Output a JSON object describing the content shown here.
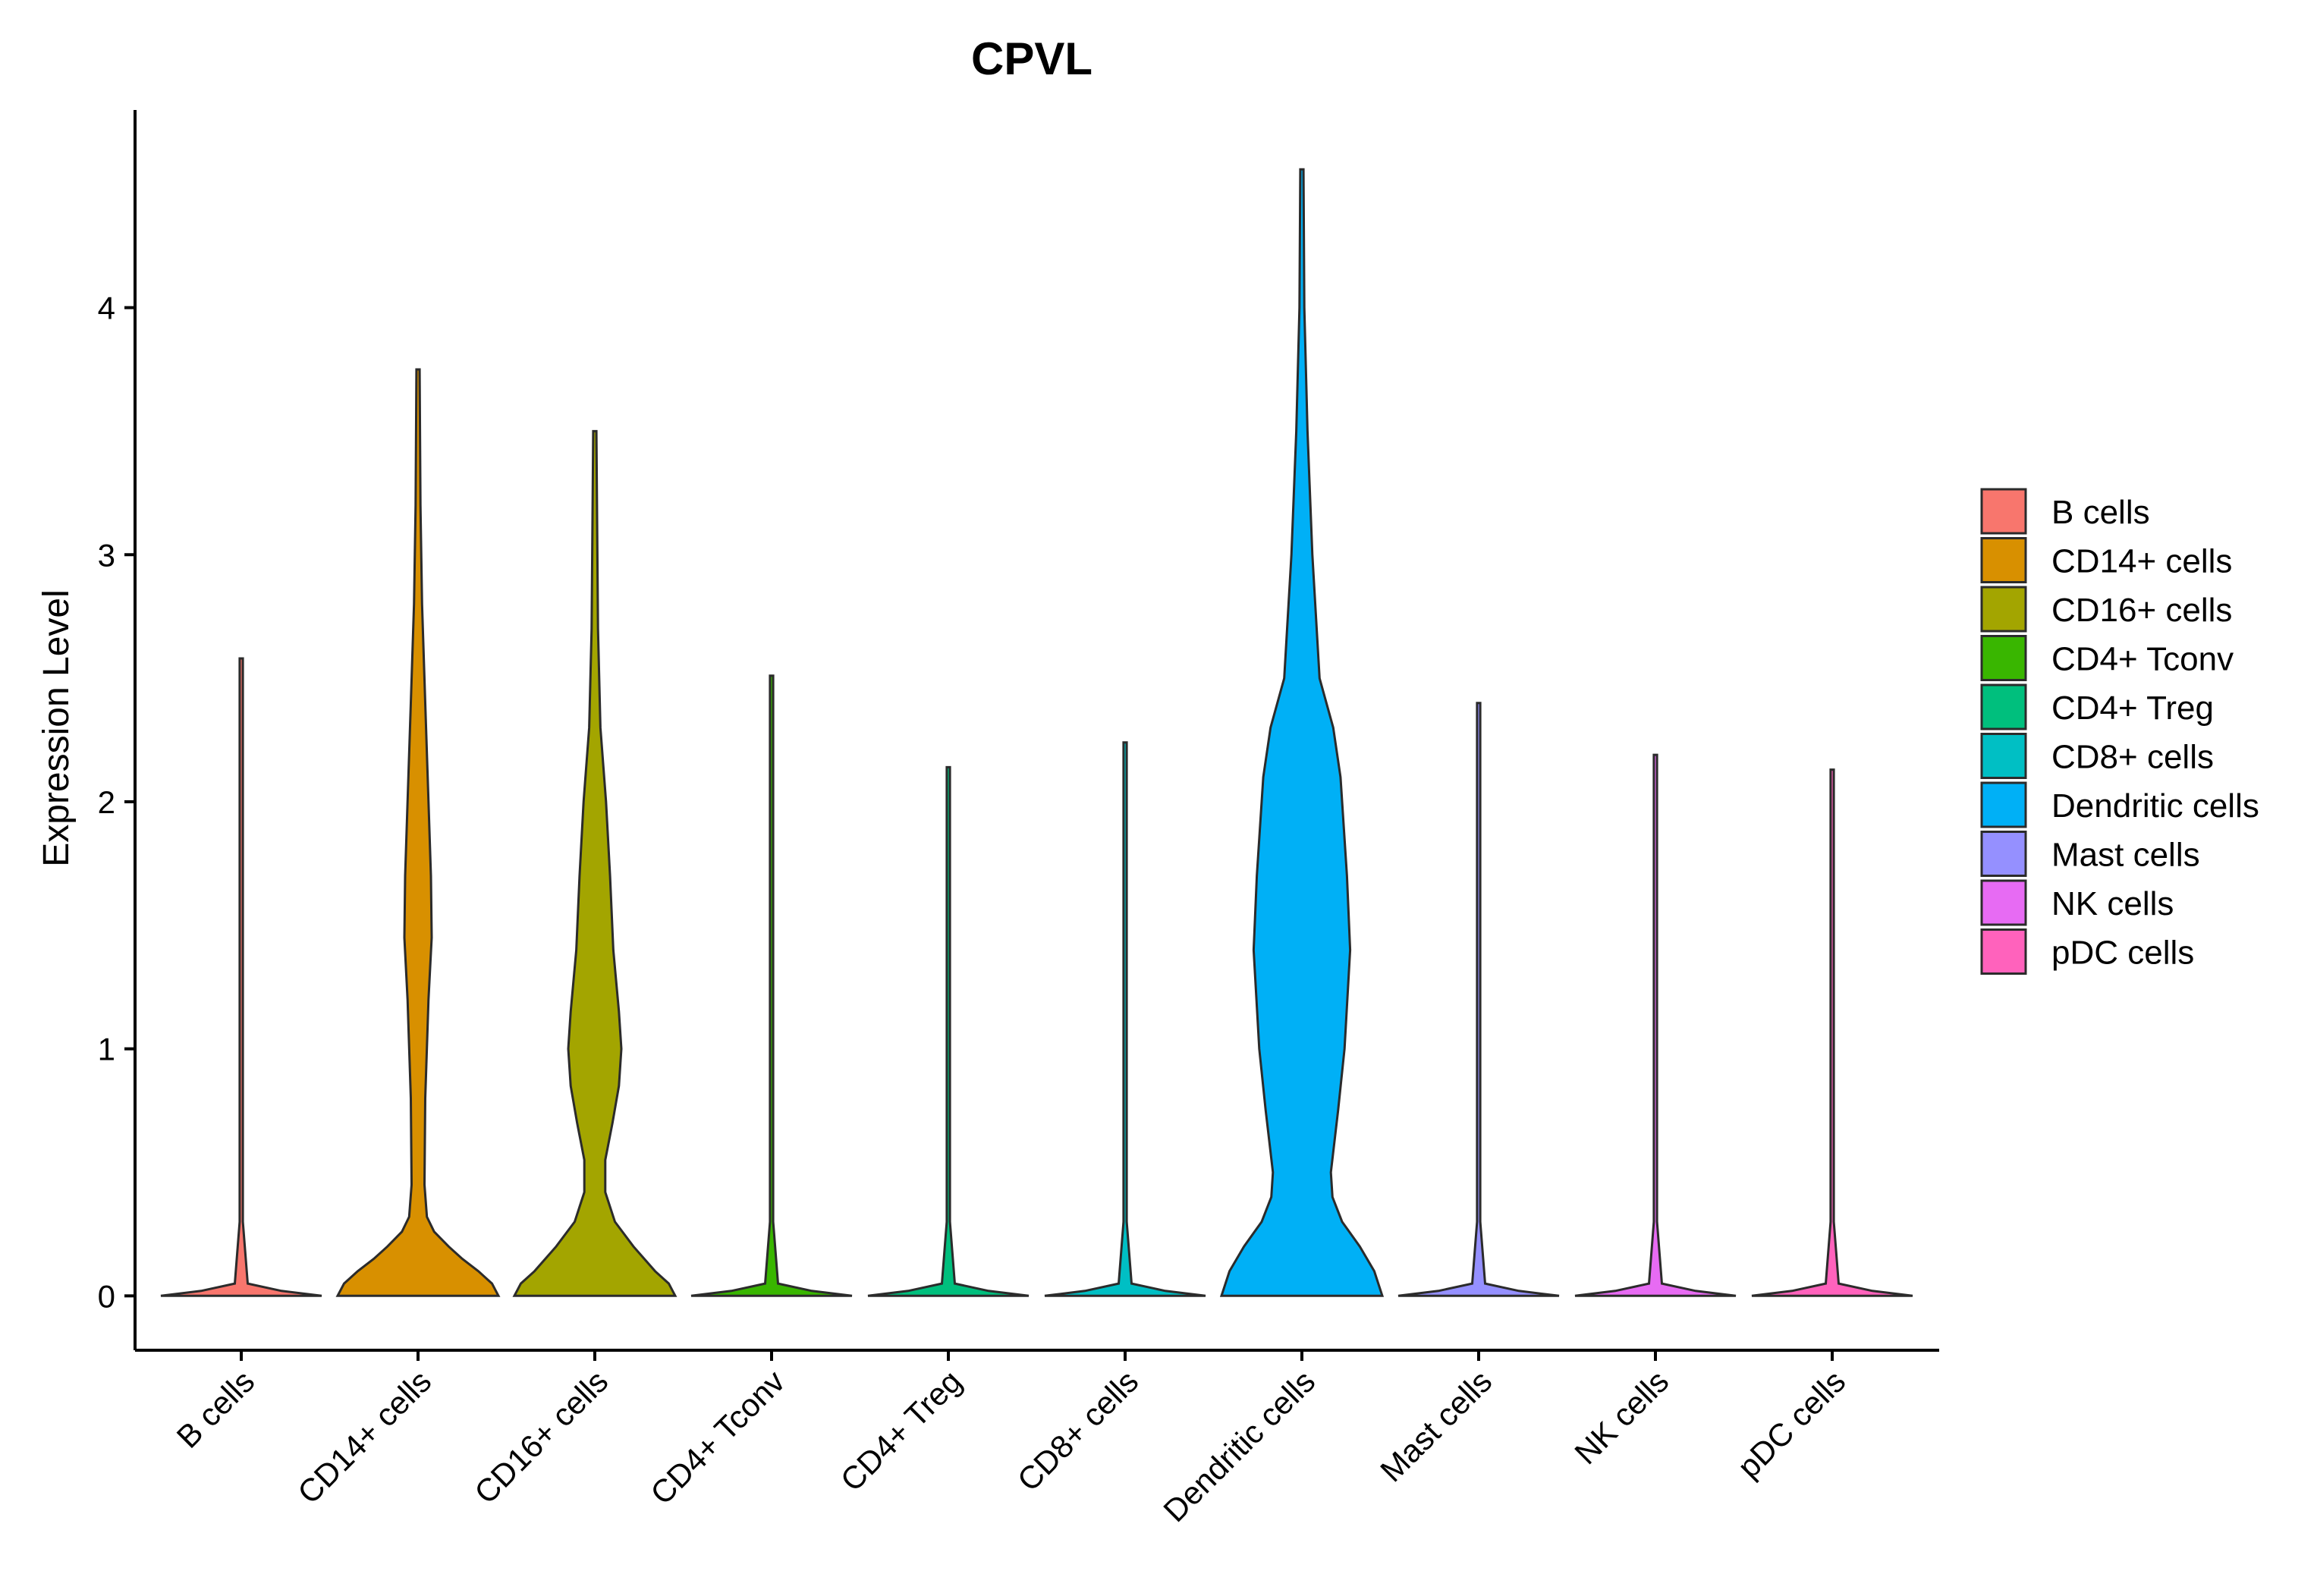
{
  "chart_data": {
    "type": "violin",
    "title": "CPVL",
    "xlabel": "",
    "ylabel": "Expression Level",
    "ylim": [
      -0.22,
      4.8
    ],
    "yticks": [
      0,
      1,
      2,
      3,
      4
    ],
    "categories": [
      "B cells",
      "CD14+ cells",
      "CD16+ cells",
      "CD4+ Tconv",
      "CD4+ Treg",
      "CD8+ cells",
      "Dendritic cells",
      "Mast cells",
      "NK cells",
      "pDC cells"
    ],
    "colors": [
      "#F8766D",
      "#D89000",
      "#A3A500",
      "#39B600",
      "#00BF7D",
      "#00BFC4",
      "#00B0F6",
      "#9590FF",
      "#E76BF3",
      "#FF62BC"
    ],
    "max_values": [
      2.58,
      3.75,
      3.5,
      2.51,
      2.14,
      2.24,
      4.56,
      2.4,
      2.19,
      2.13
    ],
    "density_profiles": [
      [
        [
          0,
          1.0
        ],
        [
          0.02,
          0.5
        ],
        [
          0.05,
          0.08
        ],
        [
          0.3,
          0.02
        ],
        [
          2.58,
          0.02
        ]
      ],
      [
        [
          0,
          1.0
        ],
        [
          0.05,
          0.92
        ],
        [
          0.1,
          0.75
        ],
        [
          0.15,
          0.55
        ],
        [
          0.2,
          0.38
        ],
        [
          0.26,
          0.2
        ],
        [
          0.32,
          0.11
        ],
        [
          0.45,
          0.08
        ],
        [
          0.8,
          0.09
        ],
        [
          1.2,
          0.13
        ],
        [
          1.45,
          0.17
        ],
        [
          1.7,
          0.16
        ],
        [
          2.0,
          0.13
        ],
        [
          2.4,
          0.09
        ],
        [
          2.8,
          0.05
        ],
        [
          3.2,
          0.03
        ],
        [
          3.75,
          0.02
        ]
      ],
      [
        [
          0,
          1.0
        ],
        [
          0.05,
          0.92
        ],
        [
          0.1,
          0.75
        ],
        [
          0.2,
          0.48
        ],
        [
          0.3,
          0.25
        ],
        [
          0.42,
          0.13
        ],
        [
          0.55,
          0.13
        ],
        [
          0.7,
          0.22
        ],
        [
          0.85,
          0.3
        ],
        [
          1.0,
          0.33
        ],
        [
          1.15,
          0.3
        ],
        [
          1.4,
          0.23
        ],
        [
          1.7,
          0.19
        ],
        [
          2.0,
          0.14
        ],
        [
          2.3,
          0.07
        ],
        [
          2.7,
          0.04
        ],
        [
          3.5,
          0.02
        ]
      ],
      [
        [
          0,
          1.0
        ],
        [
          0.02,
          0.5
        ],
        [
          0.05,
          0.08
        ],
        [
          0.3,
          0.02
        ],
        [
          2.51,
          0.02
        ]
      ],
      [
        [
          0,
          1.0
        ],
        [
          0.02,
          0.5
        ],
        [
          0.05,
          0.08
        ],
        [
          0.3,
          0.02
        ],
        [
          2.14,
          0.02
        ]
      ],
      [
        [
          0,
          1.0
        ],
        [
          0.02,
          0.5
        ],
        [
          0.05,
          0.08
        ],
        [
          0.3,
          0.02
        ],
        [
          2.24,
          0.02
        ]
      ],
      [
        [
          0,
          1.0
        ],
        [
          0.1,
          0.9
        ],
        [
          0.2,
          0.72
        ],
        [
          0.3,
          0.5
        ],
        [
          0.4,
          0.38
        ],
        [
          0.5,
          0.36
        ],
        [
          0.75,
          0.45
        ],
        [
          1.0,
          0.53
        ],
        [
          1.4,
          0.6
        ],
        [
          1.7,
          0.56
        ],
        [
          2.1,
          0.48
        ],
        [
          2.3,
          0.39
        ],
        [
          2.5,
          0.22
        ],
        [
          3.0,
          0.13
        ],
        [
          3.5,
          0.07
        ],
        [
          4.0,
          0.03
        ],
        [
          4.56,
          0.02
        ]
      ],
      [
        [
          0,
          1.0
        ],
        [
          0.02,
          0.5
        ],
        [
          0.05,
          0.08
        ],
        [
          0.3,
          0.02
        ],
        [
          2.4,
          0.02
        ]
      ],
      [
        [
          0,
          1.0
        ],
        [
          0.02,
          0.5
        ],
        [
          0.05,
          0.08
        ],
        [
          0.3,
          0.02
        ],
        [
          2.19,
          0.02
        ]
      ],
      [
        [
          0,
          1.0
        ],
        [
          0.02,
          0.5
        ],
        [
          0.05,
          0.08
        ],
        [
          0.3,
          0.02
        ],
        [
          2.13,
          0.02
        ]
      ]
    ],
    "legend": {
      "placement": "right",
      "entries": [
        "B cells",
        "CD14+ cells",
        "CD16+ cells",
        "CD4+ Tconv",
        "CD4+ Treg",
        "CD8+ cells",
        "Dendritic cells",
        "Mast cells",
        "NK cells",
        "pDC cells"
      ]
    }
  }
}
